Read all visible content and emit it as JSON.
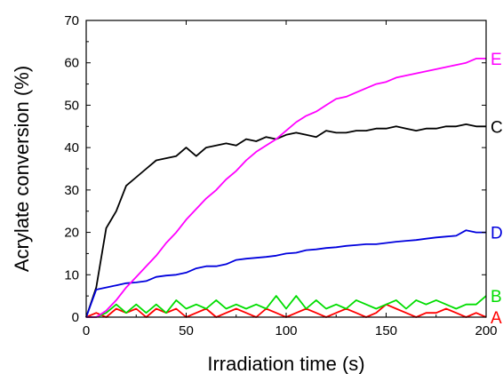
{
  "chart_data": {
    "type": "line",
    "title": "",
    "xlabel": "Irradiation time (s)",
    "ylabel": "Acrylate conversion (%)",
    "xlim": [
      0,
      200
    ],
    "ylim": [
      0,
      70
    ],
    "xticks": [
      0,
      50,
      100,
      150,
      200
    ],
    "yticks": [
      0,
      10,
      20,
      30,
      40,
      50,
      60,
      70
    ],
    "grid": false,
    "legend": "none",
    "series": [
      {
        "name": "A",
        "color": "#ff0000",
        "x": [
          0,
          5,
          10,
          15,
          20,
          25,
          30,
          35,
          40,
          45,
          50,
          55,
          60,
          65,
          70,
          75,
          80,
          85,
          90,
          95,
          100,
          105,
          110,
          115,
          120,
          125,
          130,
          135,
          140,
          145,
          150,
          155,
          160,
          165,
          170,
          175,
          180,
          185,
          190,
          195,
          200
        ],
        "y": [
          0,
          1,
          0,
          2,
          1,
          2,
          0,
          2,
          1,
          2,
          0,
          1,
          2,
          0,
          1,
          2,
          1,
          0,
          2,
          1,
          0,
          1,
          2,
          1,
          0,
          1,
          2,
          1,
          0,
          1,
          3,
          2,
          1,
          0,
          1,
          1,
          2,
          1,
          0,
          1,
          0
        ]
      },
      {
        "name": "B",
        "color": "#00dd00",
        "x": [
          0,
          5,
          10,
          15,
          20,
          25,
          30,
          35,
          40,
          45,
          50,
          55,
          60,
          65,
          70,
          75,
          80,
          85,
          90,
          95,
          100,
          105,
          110,
          115,
          120,
          125,
          130,
          135,
          140,
          145,
          150,
          155,
          160,
          165,
          170,
          175,
          180,
          185,
          190,
          195,
          200
        ],
        "y": [
          0,
          0,
          1,
          3,
          1,
          3,
          1,
          3,
          1,
          4,
          2,
          3,
          2,
          4,
          2,
          3,
          2,
          3,
          2,
          5,
          2,
          5,
          2,
          4,
          2,
          3,
          2,
          4,
          3,
          2,
          3,
          4,
          2,
          4,
          3,
          4,
          3,
          2,
          3,
          3,
          5
        ]
      },
      {
        "name": "C",
        "color": "#000000",
        "x": [
          0,
          5,
          10,
          15,
          20,
          25,
          30,
          35,
          40,
          45,
          50,
          55,
          60,
          65,
          70,
          75,
          80,
          85,
          90,
          95,
          100,
          105,
          110,
          115,
          120,
          125,
          130,
          135,
          140,
          145,
          150,
          155,
          160,
          165,
          170,
          175,
          180,
          185,
          190,
          195,
          200
        ],
        "y": [
          0,
          7,
          21,
          25,
          31,
          33,
          35,
          37,
          37.5,
          38,
          40,
          38,
          40,
          40.5,
          41,
          40.5,
          42,
          41.5,
          42.5,
          42,
          43,
          43.5,
          43,
          42.5,
          44,
          43.5,
          43.5,
          44,
          44,
          44.5,
          44.5,
          45,
          44.5,
          44,
          44.5,
          44.5,
          45,
          45,
          45.5,
          45,
          45
        ]
      },
      {
        "name": "D",
        "color": "#0000dd",
        "x": [
          0,
          5,
          10,
          15,
          20,
          25,
          30,
          35,
          40,
          45,
          50,
          55,
          60,
          65,
          70,
          75,
          80,
          85,
          90,
          95,
          100,
          105,
          110,
          115,
          120,
          125,
          130,
          135,
          140,
          145,
          150,
          155,
          160,
          165,
          170,
          175,
          180,
          185,
          190,
          195,
          200
        ],
        "y": [
          0,
          6.5,
          7,
          7.5,
          8,
          8.2,
          8.5,
          9.5,
          9.8,
          10,
          10.5,
          11.5,
          12,
          12,
          12.5,
          13.5,
          13.8,
          14,
          14.2,
          14.5,
          15,
          15.2,
          15.8,
          16,
          16.3,
          16.5,
          16.8,
          17,
          17.2,
          17.2,
          17.5,
          17.8,
          18,
          18.2,
          18.5,
          18.8,
          19,
          19.2,
          20.5,
          20,
          20
        ]
      },
      {
        "name": "E",
        "color": "#ff00ff",
        "x": [
          0,
          5,
          10,
          15,
          20,
          25,
          30,
          35,
          40,
          45,
          50,
          55,
          60,
          65,
          70,
          75,
          80,
          85,
          90,
          95,
          100,
          105,
          110,
          115,
          120,
          125,
          130,
          135,
          140,
          145,
          150,
          155,
          160,
          165,
          170,
          175,
          180,
          185,
          190,
          195,
          200
        ],
        "y": [
          0,
          0,
          1.5,
          4,
          7,
          9.5,
          12,
          14.5,
          17.5,
          20,
          23,
          25.5,
          28,
          30,
          32.5,
          34.5,
          37,
          39,
          40.5,
          42,
          44,
          46,
          47.5,
          48.5,
          50,
          51.5,
          52,
          53,
          54,
          55,
          55.5,
          56.5,
          57,
          57.5,
          58,
          58.5,
          59,
          59.5,
          60,
          61,
          61
        ]
      }
    ]
  }
}
